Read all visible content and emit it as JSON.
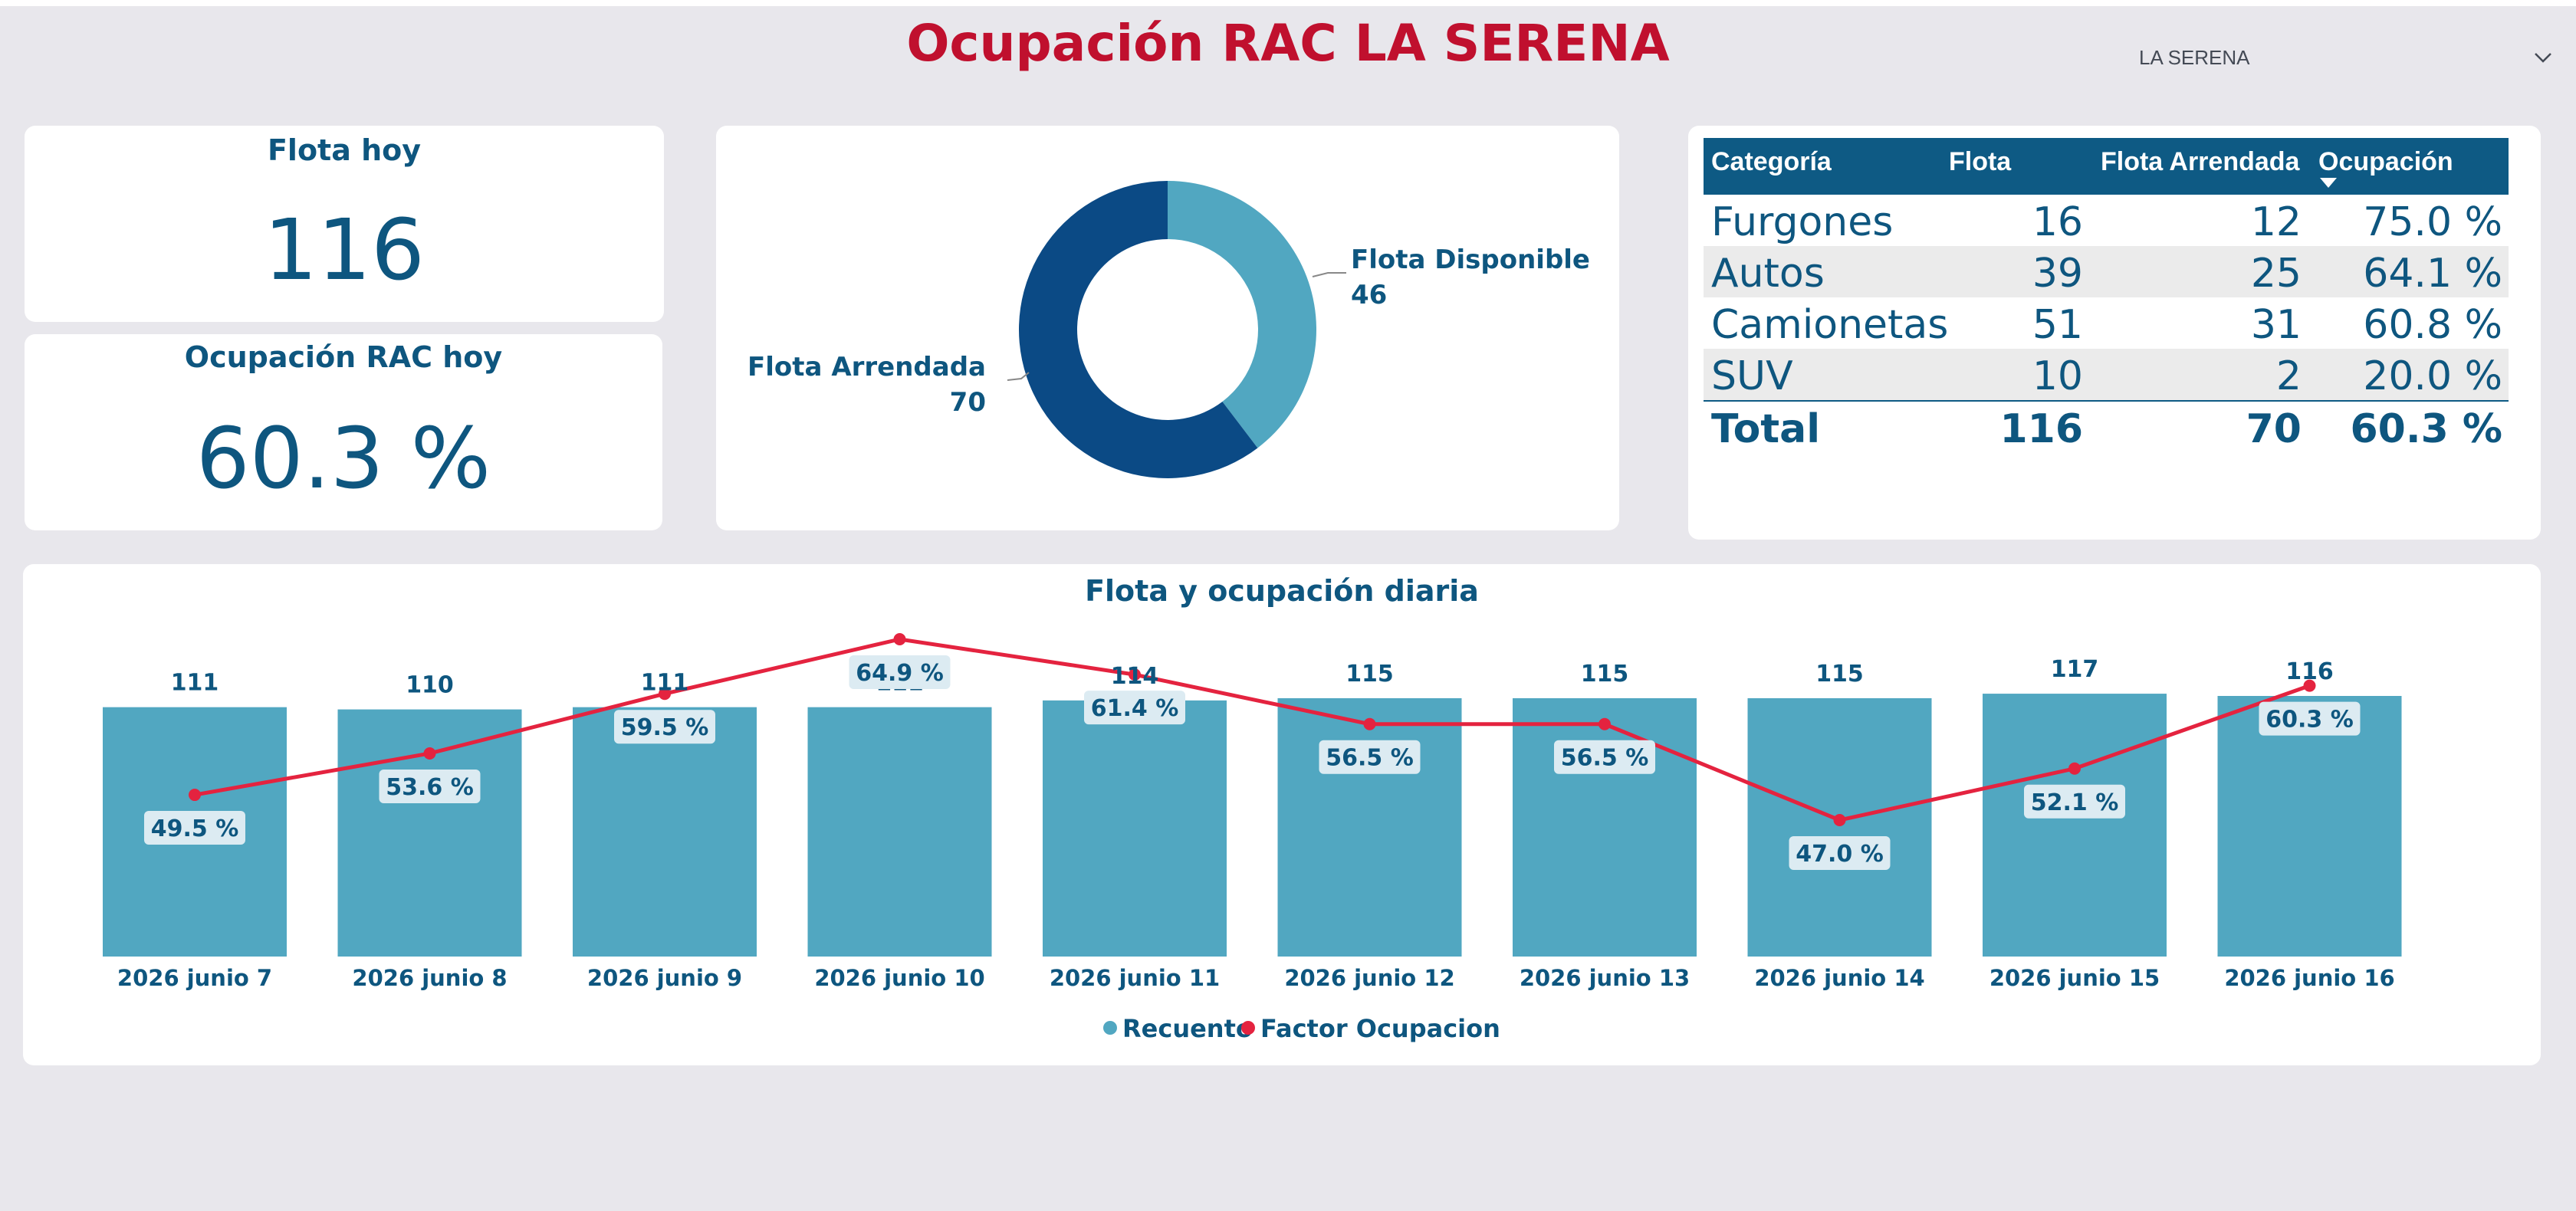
{
  "header": {
    "title": "Ocupación RAC LA SERENA",
    "slicer_value": "LA SERENA"
  },
  "kpis": {
    "flota_hoy": {
      "label": "Flota hoy",
      "value": "116"
    },
    "ocupacion_hoy": {
      "label": "Ocupación RAC hoy",
      "value": "60.3 %"
    }
  },
  "donut": {
    "slices": [
      {
        "label": "Flota Disponible",
        "value": 46,
        "value_text": "46",
        "color": "#51a7c1"
      },
      {
        "label": "Flota Arrendada",
        "value": 70,
        "value_text": "70",
        "color": "#0b4a85"
      }
    ]
  },
  "table": {
    "headers": [
      "Categoría",
      "Flota",
      "Flota Arrendada",
      "Ocupación"
    ],
    "rows": [
      [
        "Furgones",
        "16",
        "12",
        "75.0 %"
      ],
      [
        "Autos",
        "39",
        "25",
        "64.1 %"
      ],
      [
        "Camionetas",
        "51",
        "31",
        "60.8 %"
      ],
      [
        "SUV",
        "10",
        "2",
        "20.0 %"
      ]
    ],
    "total": [
      "Total",
      "116",
      "70",
      "60.3 %"
    ]
  },
  "chart_data": {
    "type": "bar",
    "title": "Flota y ocupación diaria",
    "categories": [
      "2026 junio 7",
      "2026 junio 8",
      "2026 junio 9",
      "2026 junio 10",
      "2026 junio 11",
      "2026 junio 12",
      "2026 junio 13",
      "2026 junio 14",
      "2026 junio 15",
      "2026 junio 16"
    ],
    "series": [
      {
        "name": "Recuento",
        "type": "bar",
        "color": "#51a7c1",
        "values": [
          111,
          110,
          111,
          111,
          114,
          115,
          115,
          115,
          117,
          116
        ]
      },
      {
        "name": "Factor Ocupacion",
        "type": "line",
        "color": "#e4233f",
        "values": [
          49.5,
          53.6,
          59.5,
          64.9,
          61.4,
          56.5,
          56.5,
          47.0,
          52.1,
          60.3
        ],
        "labels": [
          "49.5 %",
          "53.6 %",
          "59.5 %",
          "64.9 %",
          "61.4 %",
          "56.5 %",
          "56.5 %",
          "47.0 %",
          "52.1 %",
          "60.3 %"
        ]
      }
    ],
    "legend": "bottom-center"
  }
}
